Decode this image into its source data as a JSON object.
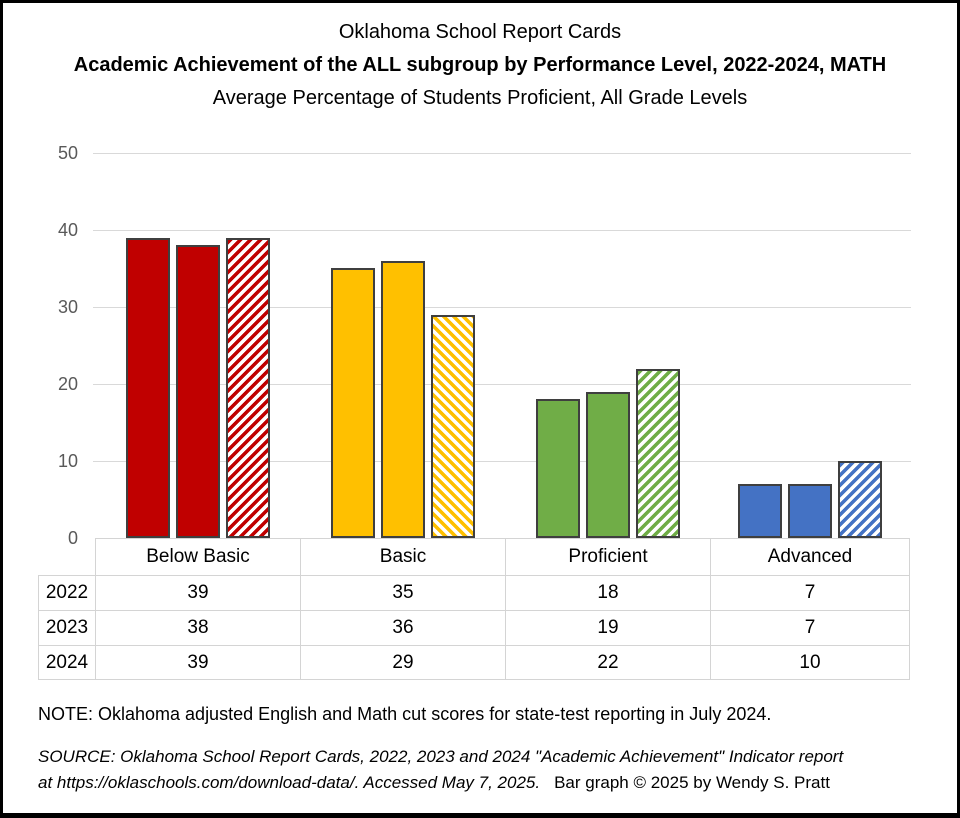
{
  "chart_data": {
    "type": "bar",
    "title": "Oklahoma School Report Cards",
    "subtitle": "Academic Achievement of the ALL subgroup by Performance Level, 2022-2024, MATH",
    "caption": "Average Percentage of Students Proficient, All Grade Levels",
    "categories": [
      {
        "label": "Below Basic",
        "color": "#C00000",
        "hatch_direction": "up"
      },
      {
        "label": "Basic",
        "color": "#FFC000",
        "hatch_direction": "down"
      },
      {
        "label": "Proficient",
        "color": "#70AD47",
        "hatch_direction": "up"
      },
      {
        "label": "Advanced",
        "color": "#4472C4",
        "hatch_direction": "up"
      }
    ],
    "series": [
      {
        "name": "2022",
        "pattern": "solid",
        "values": [
          39,
          35,
          18,
          7
        ]
      },
      {
        "name": "2023",
        "pattern": "solid",
        "values": [
          38,
          36,
          19,
          7
        ]
      },
      {
        "name": "2024",
        "pattern": "hatched",
        "values": [
          39,
          29,
          22,
          10
        ]
      }
    ],
    "ylim": [
      0,
      50
    ],
    "yticks": [
      0,
      10,
      20,
      30,
      40,
      50
    ],
    "grid": true,
    "bar_border_color": "#3F3F3F",
    "gridline_color": "#D9D9D9",
    "axis_label_color": "#595959",
    "legend_position": "none — 2024 distinguished by hatched fill; values shown in table below chart"
  },
  "table": {
    "column_headers": [
      "Below Basic",
      "Basic",
      "Proficient",
      "Advanced"
    ],
    "rows": [
      {
        "year": "2022",
        "values": [
          "39",
          "35",
          "18",
          "7"
        ]
      },
      {
        "year": "2023",
        "values": [
          "38",
          "36",
          "19",
          "7"
        ]
      },
      {
        "year": "2024",
        "values": [
          "39",
          "29",
          "22",
          "10"
        ]
      }
    ]
  },
  "footer": {
    "note": "NOTE: Oklahoma adjusted English and Math cut scores for state-test reporting in July  2024.",
    "source_line1": "SOURCE: Oklahoma School Report Cards, 2022, 2023 and 2024 \"Academic Achievement\" Indicator report",
    "source_line2": "at https://oklaschools.com/download-data/. Accessed May 7, 2025.",
    "credit": "Bar graph © 2025 by Wendy S. Pratt"
  }
}
